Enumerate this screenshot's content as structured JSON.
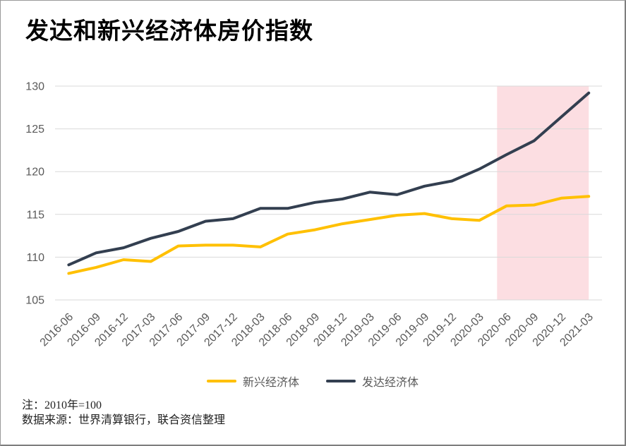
{
  "title": "发达和新兴经济体房价指数",
  "chart_data": {
    "type": "line",
    "title": "发达和新兴经济体房价指数",
    "xlabel": "",
    "ylabel": "",
    "ylim": [
      105,
      130
    ],
    "yticks": [
      105,
      110,
      115,
      120,
      125,
      130
    ],
    "grid": true,
    "legend_position": "bottom",
    "categories": [
      "2016-06",
      "2016-09",
      "2016-12",
      "2017-03",
      "2017-06",
      "2017-09",
      "2017-12",
      "2018-03",
      "2018-06",
      "2018-09",
      "2018-12",
      "2019-03",
      "2019-06",
      "2019-09",
      "2019-12",
      "2020-03",
      "2020-06",
      "2020-09",
      "2020-12",
      "2021-03"
    ],
    "series": [
      {
        "name": "新兴经济体",
        "color": "#FFC000",
        "values": [
          108.1,
          108.8,
          109.7,
          109.5,
          111.3,
          111.4,
          111.4,
          111.2,
          112.7,
          113.2,
          113.9,
          114.4,
          114.9,
          115.1,
          114.5,
          114.3,
          116.0,
          116.1,
          116.9,
          117.1
        ]
      },
      {
        "name": "发达经济体",
        "color": "#333F50",
        "values": [
          109.1,
          110.5,
          111.1,
          112.2,
          113.0,
          114.2,
          114.5,
          115.7,
          115.7,
          116.4,
          116.8,
          117.6,
          117.3,
          118.3,
          118.9,
          120.3,
          122.0,
          123.6,
          126.4,
          129.2
        ]
      }
    ],
    "highlight_band": {
      "from": "2020-06",
      "to": "2021-03",
      "color": "#FCDEE2"
    }
  },
  "colors": {
    "gridline": "#D9D9D9",
    "axis_text": "#595959",
    "title_text": "#000000",
    "band": "#FCDEE2",
    "emerging": "#FFC000",
    "developed": "#333F50"
  },
  "footnotes": {
    "note": "注：2010年=100",
    "source": "数据来源：世界清算银行，联合资信整理"
  }
}
